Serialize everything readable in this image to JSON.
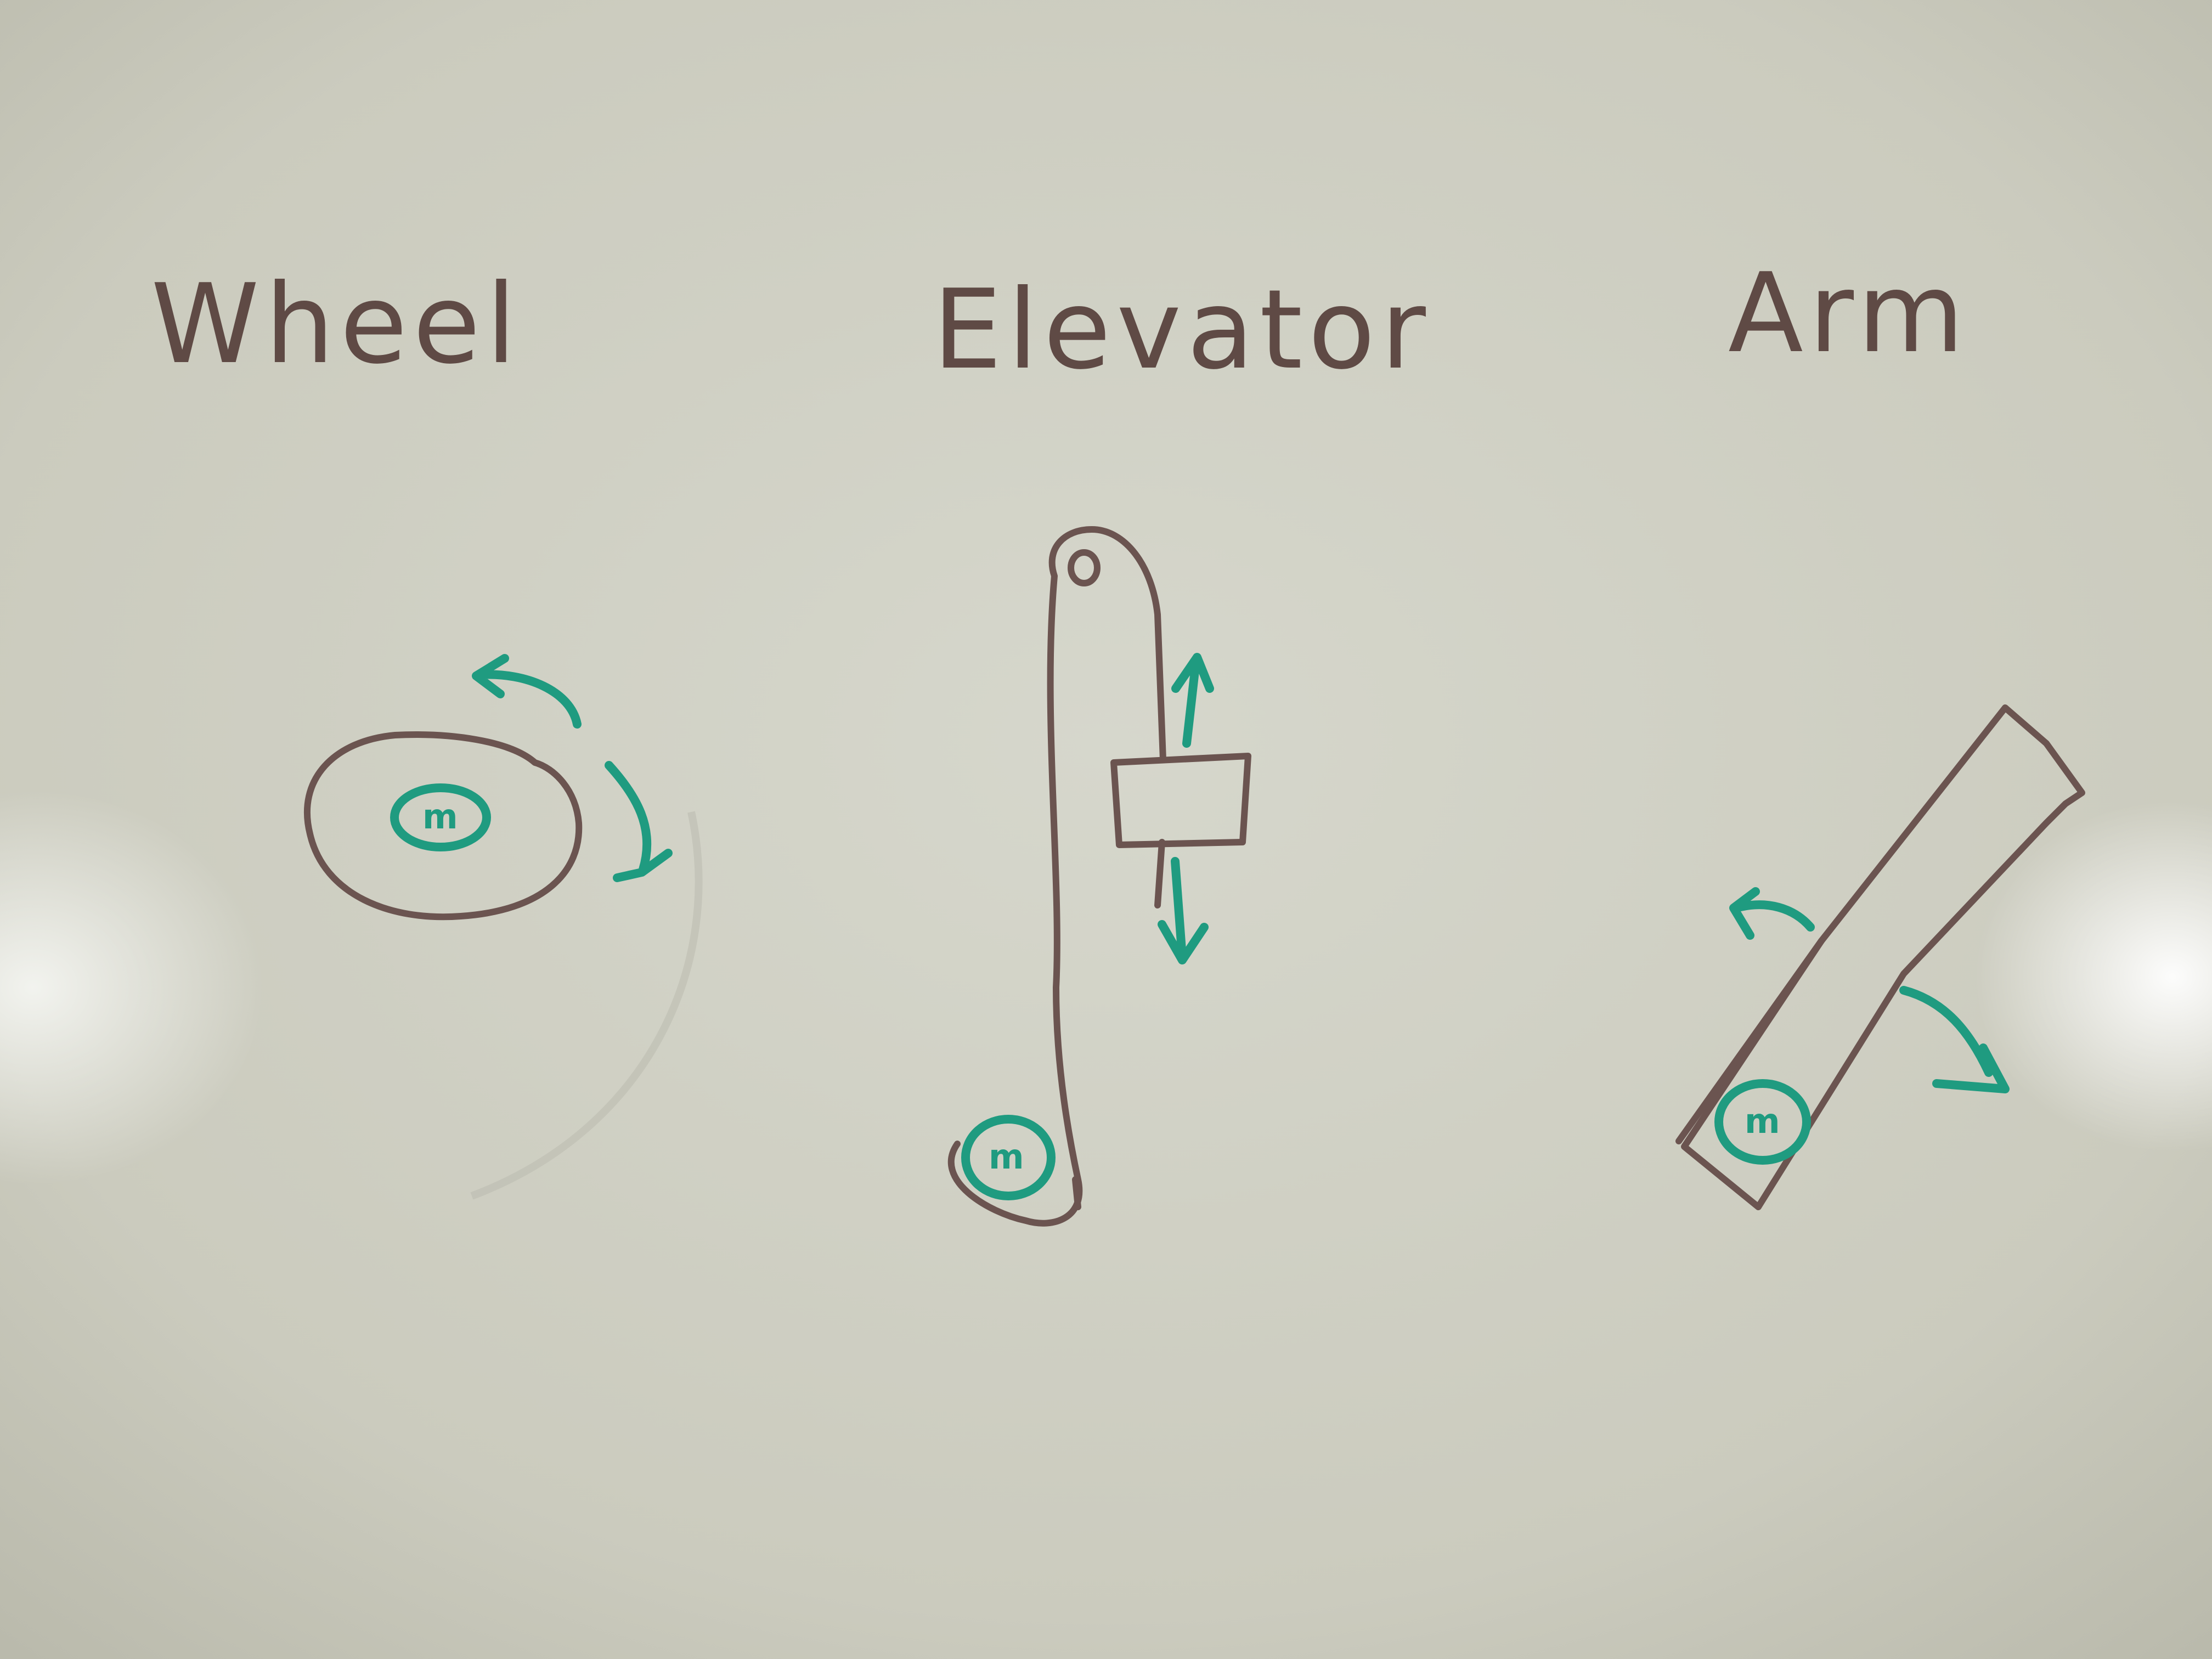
{
  "board": {
    "labels": {
      "wheel": "Wheel",
      "elevator": "Elevator",
      "arm": "Arm"
    },
    "motor_mark": "m"
  },
  "colors": {
    "board": "#cfcfc3",
    "ink_brown": "#6b5450",
    "ink_green": "#1f9b80"
  }
}
